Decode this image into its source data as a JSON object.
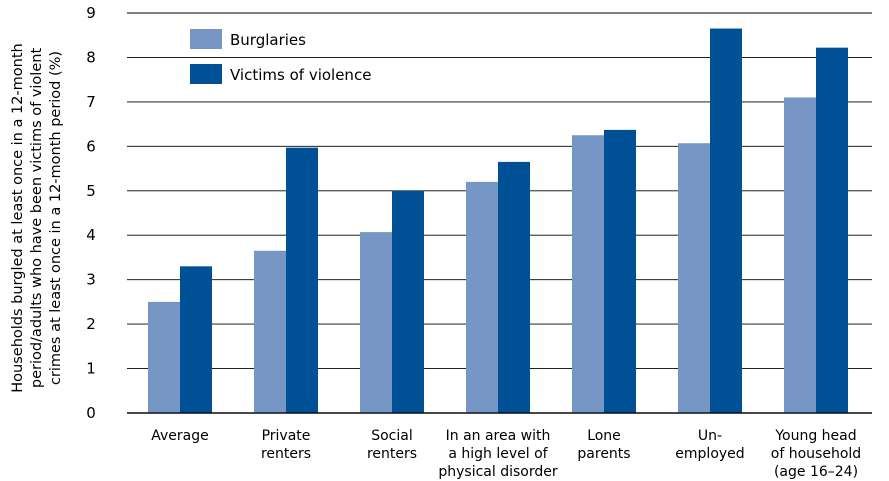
{
  "chart_data": {
    "type": "bar",
    "title": "",
    "ylabel_lines": [
      "Households burgled at least once in a 12-month",
      "period/adults who have been victims of violent",
      "crimes at least once in a 12-month period (%)"
    ],
    "ylim": [
      0,
      9
    ],
    "yticks": [
      "0",
      "1",
      "2",
      "3",
      "4",
      "5",
      "6",
      "7",
      "8",
      "9"
    ],
    "grid": true,
    "legend_position": "top-left",
    "categories": [
      [
        "Average"
      ],
      [
        "Private",
        "renters"
      ],
      [
        "Social",
        "renters"
      ],
      [
        "In an area with",
        "a high level of",
        "physical disorder"
      ],
      [
        "Lone",
        "parents"
      ],
      [
        "Un-",
        "employed"
      ],
      [
        "Young head",
        "of household",
        "(age 16–24)"
      ]
    ],
    "series": [
      {
        "name": "Burglaries",
        "color": "#7697c6",
        "values": [
          2.5,
          3.65,
          4.07,
          5.2,
          6.25,
          6.07,
          7.1
        ]
      },
      {
        "name": "Victims of violence",
        "color": "#005096",
        "values": [
          3.3,
          5.97,
          5.0,
          5.65,
          6.37,
          8.65,
          8.22
        ]
      }
    ]
  }
}
